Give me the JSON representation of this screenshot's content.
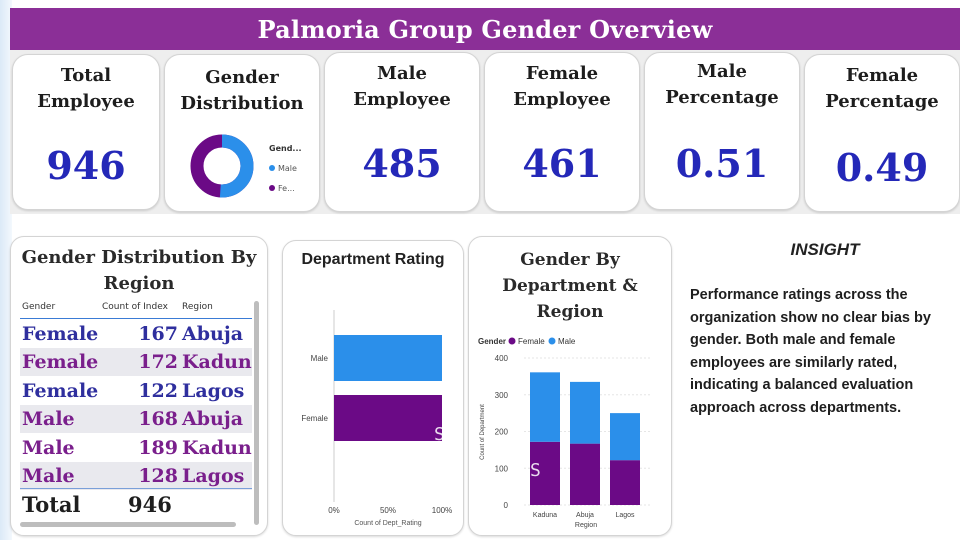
{
  "title": "Palmoria Group Gender Overview",
  "kpis": {
    "total": {
      "label": "Total\nEmployee",
      "value": "946"
    },
    "distribution": {
      "label": "Gender\nDistribution"
    },
    "male": {
      "label": "Male\nEmployee",
      "value": "485"
    },
    "female": {
      "label": "Female\nEmployee",
      "value": "461"
    },
    "male_pct": {
      "label": "Male\nPercentage",
      "value": "0.51"
    },
    "female_pct": {
      "label": "Female\nPercentage",
      "value": "0.49"
    }
  },
  "donut": {
    "legend_title": "Gend...",
    "legend_items": [
      "Male",
      "Fe..."
    ],
    "shares": [
      0.51,
      0.49
    ]
  },
  "region_table": {
    "title": "Gender Distribution By Region",
    "headers": [
      "Gender",
      "Count of Index",
      "Region"
    ],
    "rows": [
      {
        "gender": "Female",
        "count": "167",
        "region": "Abuja"
      },
      {
        "gender": "Female",
        "count": "172",
        "region": "Kaduna"
      },
      {
        "gender": "Female",
        "count": "122",
        "region": "Lagos"
      },
      {
        "gender": "Male",
        "count": "168",
        "region": "Abuja"
      },
      {
        "gender": "Male",
        "count": "189",
        "region": "Kaduna"
      },
      {
        "gender": "Male",
        "count": "128",
        "region": "Lagos"
      }
    ],
    "total_label": "Total",
    "total_value": "946"
  },
  "dept_rating": {
    "title": "Department Rating"
  },
  "gender_dept_region": {
    "title": "Gender By Department & Region",
    "legend_label": "Gender"
  },
  "insight": {
    "title": "INSIGHT",
    "text": "Performance ratings across the organization show no clear bias by gender. Both male and female employees are similarly rated, indicating a balanced evaluation approach across departments."
  },
  "overlay": {
    "line1": "S",
    "line2": "S"
  },
  "colors": {
    "banner": "#8b2f97",
    "kpi_value": "#2428b8",
    "male": "#2b8fea",
    "female": "#6b0a86",
    "female_text": "#2f2f9e",
    "male_text": "#7a1f8c"
  },
  "chart_data": [
    {
      "type": "bar",
      "orientation": "horizontal",
      "title": "Department Rating",
      "categories": [
        "Male",
        "Female"
      ],
      "values": [
        100,
        100
      ],
      "xlabel": "Count of Dept_Rating",
      "xticks": [
        "0%",
        "50%",
        "100%"
      ],
      "xlim": [
        0,
        100
      ],
      "colors": [
        "#2b8fea",
        "#6b0a86"
      ]
    },
    {
      "type": "bar",
      "stacked": true,
      "title": "Gender By Department & Region",
      "categories": [
        "Kaduna",
        "Abuja",
        "Lagos"
      ],
      "series": [
        {
          "name": "Female",
          "values": [
            172,
            167,
            122
          ]
        },
        {
          "name": "Male",
          "values": [
            189,
            168,
            128
          ]
        }
      ],
      "xlabel": "Region",
      "ylabel": "Count of Department",
      "ylim": [
        0,
        400
      ],
      "yticks": [
        0,
        100,
        200,
        300,
        400
      ],
      "legend": "top-left"
    }
  ]
}
